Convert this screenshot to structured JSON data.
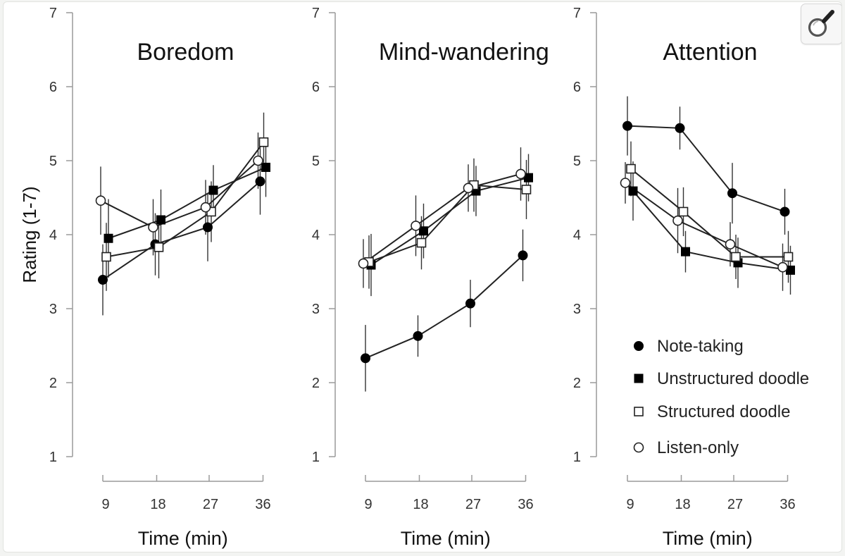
{
  "zoom_button": {
    "icon": "magnifier-icon"
  },
  "chart_data": {
    "type": "line",
    "ylabel": "Rating (1-7)",
    "xlabel": "Time (min)",
    "ylim": [
      1,
      7
    ],
    "y_ticks": [
      "1",
      "2",
      "3",
      "4",
      "5",
      "6",
      "7"
    ],
    "x": [
      "9",
      "18",
      "27",
      "36"
    ],
    "legend": [
      {
        "name": "Note-taking",
        "marker": "filled-circle"
      },
      {
        "name": "Unstructured doodle",
        "marker": "filled-square"
      },
      {
        "name": "Structured doodle",
        "marker": "open-square"
      },
      {
        "name": "Listen-only",
        "marker": "open-circle"
      }
    ],
    "legend_placement": "bottom-right of Attention panel",
    "grid": false,
    "panels": [
      {
        "title": "Boredom",
        "series": [
          {
            "name": "Note-taking",
            "values": [
              3.39,
              3.87,
              4.1,
              4.72
            ],
            "errors": [
              0.48,
              0.42,
              0.46,
              0.45
            ]
          },
          {
            "name": "Unstructured doodle",
            "values": [
              3.95,
              4.2,
              4.6,
              4.91
            ],
            "errors": [
              0.53,
              0.41,
              0.34,
              0.4
            ]
          },
          {
            "name": "Structured doodle",
            "values": [
              3.7,
              3.83,
              4.31,
              5.25
            ],
            "errors": [
              0.46,
              0.42,
              0.41,
              0.4
            ]
          },
          {
            "name": "Listen-only",
            "values": [
              4.46,
              4.1,
              4.37,
              5.0
            ],
            "errors": [
              0.46,
              0.38,
              0.37,
              0.38
            ]
          }
        ]
      },
      {
        "title": "Mind-wandering",
        "series": [
          {
            "name": "Note-taking",
            "values": [
              2.33,
              2.63,
              3.07,
              3.72
            ],
            "errors": [
              0.45,
              0.28,
              0.32,
              0.35
            ]
          },
          {
            "name": "Unstructured doodle",
            "values": [
              3.59,
              4.05,
              4.59,
              4.77
            ],
            "errors": [
              0.42,
              0.37,
              0.34,
              0.32
            ]
          },
          {
            "name": "Structured doodle",
            "values": [
              3.63,
              3.89,
              4.67,
              4.61
            ],
            "errors": [
              0.36,
              0.36,
              0.36,
              0.4
            ]
          },
          {
            "name": "Listen-only",
            "values": [
              3.61,
              4.12,
              4.63,
              4.82
            ],
            "errors": [
              0.33,
              0.41,
              0.32,
              0.36
            ]
          }
        ]
      },
      {
        "title": "Attention",
        "series": [
          {
            "name": "Note-taking",
            "values": [
              5.47,
              5.44,
              4.56,
              4.31
            ],
            "errors": [
              0.4,
              0.29,
              0.41,
              0.31
            ]
          },
          {
            "name": "Unstructured doodle",
            "values": [
              4.59,
              3.77,
              3.62,
              3.52
            ],
            "errors": [
              0.4,
              0.28,
              0.34,
              0.33
            ]
          },
          {
            "name": "Structured doodle",
            "values": [
              4.89,
              4.31,
              3.7,
              3.7
            ],
            "errors": [
              0.37,
              0.33,
              0.3,
              0.35
            ]
          },
          {
            "name": "Listen-only",
            "values": [
              4.7,
              4.19,
              3.87,
              3.56
            ],
            "errors": [
              0.28,
              0.44,
              0.3,
              0.32
            ]
          }
        ]
      }
    ]
  }
}
